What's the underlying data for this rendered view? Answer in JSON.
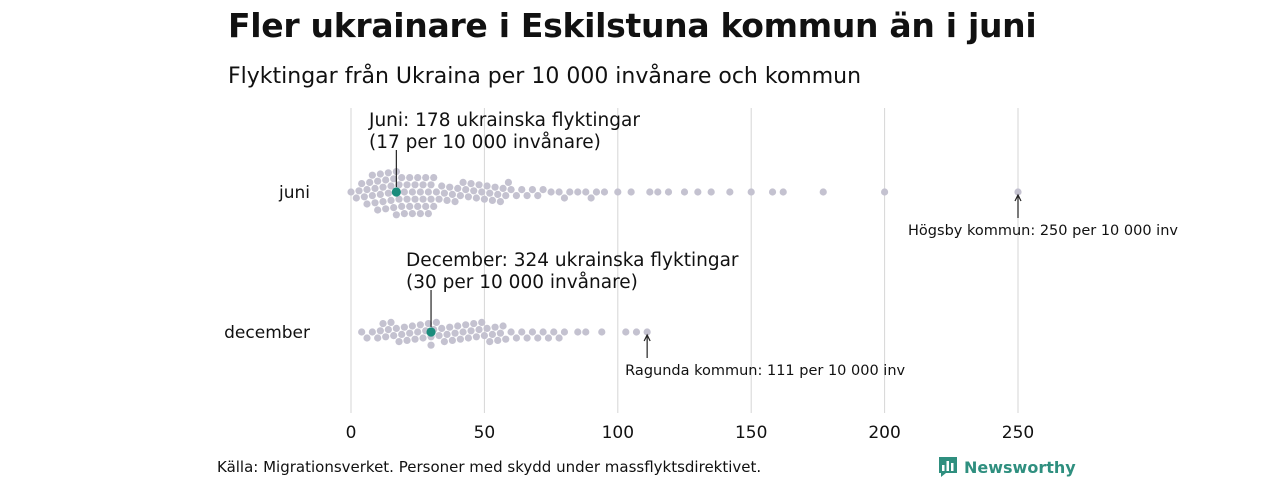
{
  "title": "Fler ukrainare i Eskilstuna kommun än i juni",
  "subtitle": "Flyktingar från Ukraina per 10 000 invånare och kommun",
  "source": "Källa: Migrationsverket. Personer med skydd under massflyktsdirektivet.",
  "brand": {
    "name": "Newsworthy",
    "icon": "bar-chart-logo-icon",
    "color": "#2f8f7f"
  },
  "colors": {
    "dots": "#c4c2d0",
    "highlight": "#1a8c7c",
    "grid": "#d6d6d6"
  },
  "chart_data": {
    "type": "scatter",
    "subtype": "beeswarm",
    "title": "Fler ukrainare i Eskilstuna kommun än i juni",
    "subtitle": "Flyktingar från Ukraina per 10 000 invånare och kommun",
    "xlim": [
      0,
      250
    ],
    "x_ticks": [
      0,
      50,
      100,
      150,
      200,
      250
    ],
    "grid": "vertical",
    "categories": [
      "juni",
      "december"
    ],
    "series": [
      {
        "name": "juni",
        "values": [
          0,
          2,
          3,
          4,
          5,
          6,
          6,
          7,
          8,
          8,
          9,
          9,
          10,
          10,
          11,
          11,
          12,
          12,
          13,
          13,
          14,
          14,
          15,
          15,
          16,
          16,
          17,
          17,
          17,
          18,
          18,
          19,
          19,
          20,
          20,
          21,
          21,
          22,
          22,
          23,
          23,
          24,
          24,
          25,
          25,
          26,
          26,
          27,
          27,
          28,
          28,
          29,
          29,
          30,
          30,
          31,
          31,
          32,
          33,
          34,
          35,
          36,
          37,
          38,
          39,
          40,
          41,
          42,
          43,
          44,
          45,
          46,
          47,
          48,
          49,
          50,
          51,
          52,
          53,
          54,
          55,
          56,
          57,
          58,
          59,
          60,
          62,
          64,
          66,
          68,
          70,
          72,
          75,
          78,
          80,
          82,
          85,
          88,
          90,
          92,
          95,
          100,
          105,
          112,
          115,
          119,
          125,
          130,
          135,
          142,
          150,
          158,
          162,
          177,
          200,
          250
        ],
        "highlight": {
          "name": "Eskilstuna",
          "value": 17,
          "label_lines": [
            "Juni: 178 ukrainska flyktingar",
            "(17 per 10 000 invånare)"
          ]
        },
        "max_annotation": {
          "value": 250,
          "label": "Högsby kommun: 250 per 10 000 inv"
        }
      },
      {
        "name": "december",
        "values": [
          4,
          6,
          8,
          10,
          11,
          12,
          13,
          14,
          15,
          16,
          17,
          18,
          19,
          20,
          21,
          22,
          23,
          24,
          25,
          26,
          27,
          28,
          29,
          30,
          30,
          31,
          32,
          33,
          34,
          35,
          36,
          37,
          38,
          39,
          40,
          41,
          42,
          43,
          44,
          45,
          46,
          47,
          48,
          49,
          50,
          51,
          52,
          53,
          54,
          55,
          56,
          57,
          58,
          60,
          62,
          64,
          66,
          68,
          70,
          72,
          74,
          76,
          78,
          80,
          85,
          88,
          94,
          103,
          107,
          111
        ],
        "highlight": {
          "name": "Eskilstuna",
          "value": 30,
          "label_lines": [
            "December: 324 ukrainska flyktingar",
            "(30 per 10 000 invånare)"
          ]
        },
        "max_annotation": {
          "value": 111,
          "label": "Ragunda kommun: 111 per 10 000 inv"
        }
      }
    ]
  }
}
